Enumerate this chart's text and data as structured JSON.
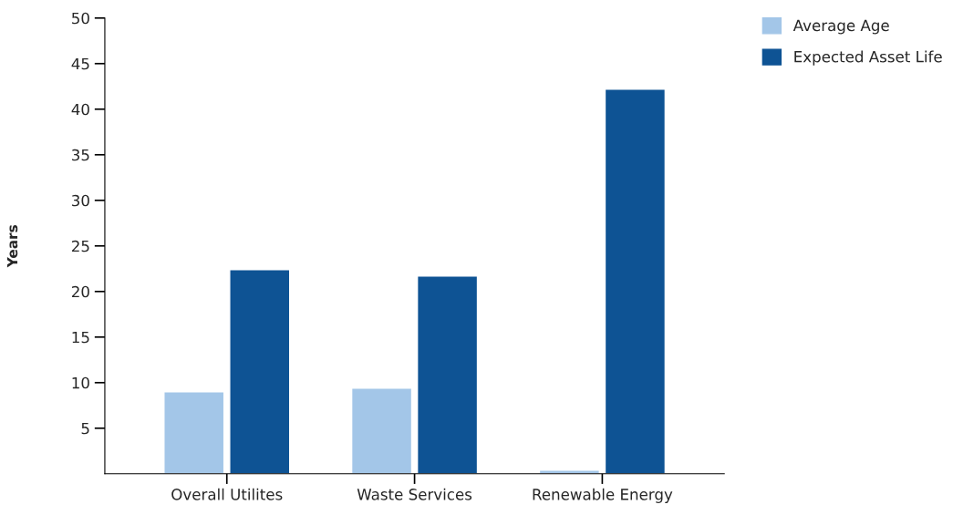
{
  "chart_data": {
    "type": "bar",
    "ylabel": "Years",
    "categories": [
      "Overall Utilites",
      "Waste Services",
      "Renewable Energy"
    ],
    "series": [
      {
        "name": "Average Age",
        "color": "#a3c6e8",
        "values": [
          9.0,
          9.4,
          0.4
        ]
      },
      {
        "name": "Expected Asset Life",
        "color": "#0e5394",
        "values": [
          22.4,
          21.7,
          42.2
        ]
      }
    ],
    "ylim": [
      0,
      50
    ],
    "yticks": [
      5,
      10,
      15,
      20,
      25,
      30,
      35,
      40,
      45,
      50
    ],
    "grid": false,
    "legend": "top right"
  }
}
